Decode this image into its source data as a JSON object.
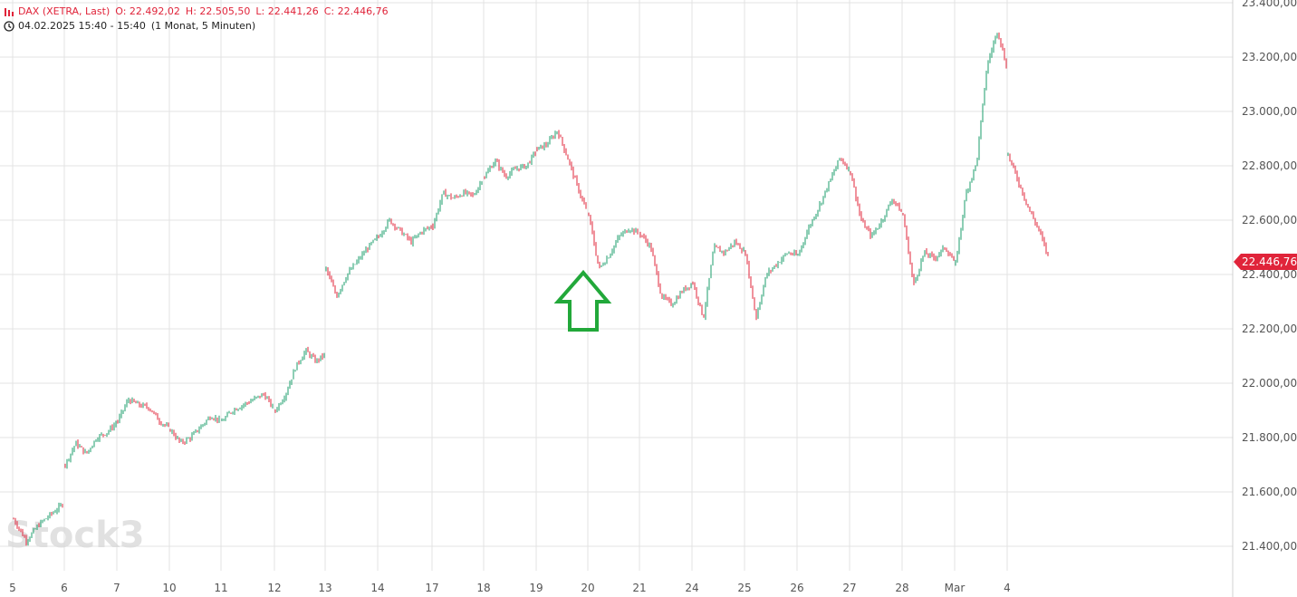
{
  "header": {
    "symbol": "DAX (XETRA, Last)",
    "open": "O: 22.492,02",
    "high": "H: 22.505,50",
    "low": "L: 22.441,26",
    "close": "C: 22.446,76",
    "datetime": "04.02.2025 15:40 - 15:40",
    "timeframe": "(1 Monat, 5 Minuten)"
  },
  "watermark": "Stock3",
  "price_label": "22.446,76",
  "colors": {
    "up": "#1b9e6b",
    "down": "#e0243a",
    "grid": "#e3e3e3",
    "arrow": "#22a83a",
    "axis_text": "#555555"
  },
  "chart_data": {
    "type": "line",
    "title": "DAX (XETRA, Last)",
    "xlabel": "",
    "ylabel": "",
    "ylim": [
      21300,
      23400
    ],
    "ytick_values": [
      21400,
      21600,
      21800,
      22000,
      22200,
      22400,
      22600,
      22800,
      23000,
      23200,
      23400
    ],
    "ytick_labels": [
      "21.400,00",
      "21.600,00",
      "21.800,00",
      "22.000,00",
      "22.200,00",
      "22.400,00",
      "22.600,00",
      "22.800,00",
      "23.000,00",
      "23.200,00",
      "23.400,00"
    ],
    "categories": [
      "5",
      "6",
      "7",
      "10",
      "11",
      "12",
      "13",
      "14",
      "17",
      "18",
      "19",
      "20",
      "21",
      "24",
      "25",
      "26",
      "27",
      "28",
      "Mar",
      "4"
    ],
    "series": [
      {
        "values": [
          [
            [
              21500,
              21420
            ],
            [
              21420,
              21480
            ],
            [
              21480,
              21520
            ],
            [
              21520,
              21560
            ]
          ],
          [
            [
              21700,
              21780
            ],
            [
              21780,
              21740
            ],
            [
              21740,
              21800
            ],
            [
              21800,
              21820
            ],
            [
              21820,
              21860
            ]
          ],
          [
            [
              21860,
              21940
            ],
            [
              21940,
              21920
            ],
            [
              21920,
              21910
            ],
            [
              21910,
              21860
            ],
            [
              21860,
              21830
            ]
          ],
          [
            [
              21830,
              21780
            ],
            [
              21780,
              21800
            ],
            [
              21800,
              21840
            ],
            [
              21840,
              21880
            ],
            [
              21880,
              21860
            ]
          ],
          [
            [
              21860,
              21900
            ],
            [
              21900,
              21920
            ],
            [
              21920,
              21940
            ],
            [
              21940,
              21960
            ],
            [
              21960,
              21900
            ]
          ],
          [
            [
              21900,
              21960
            ],
            [
              21960,
              22060
            ],
            [
              22060,
              22120
            ],
            [
              22120,
              22080
            ],
            [
              22080,
              22110
            ]
          ],
          [
            [
              22420,
              22320
            ],
            [
              22320,
              22400
            ],
            [
              22400,
              22450
            ],
            [
              22450,
              22500
            ],
            [
              22500,
              22540
            ]
          ],
          [
            [
              22540,
              22600
            ],
            [
              22600,
              22560
            ],
            [
              22560,
              22520
            ],
            [
              22520,
              22560
            ],
            [
              22560,
              22580
            ]
          ],
          [
            [
              22580,
              22700
            ],
            [
              22700,
              22680
            ],
            [
              22680,
              22700
            ],
            [
              22700,
              22690
            ],
            [
              22690,
              22760
            ]
          ],
          [
            [
              22760,
              22820
            ],
            [
              22820,
              22760
            ],
            [
              22760,
              22790
            ],
            [
              22790,
              22800
            ],
            [
              22800,
              22860
            ]
          ],
          [
            [
              22860,
              22880
            ],
            [
              22880,
              22930
            ],
            [
              22930,
              22830
            ],
            [
              22830,
              22720
            ],
            [
              22720,
              22620
            ]
          ],
          [
            [
              22620,
              22420
            ],
            [
              22420,
              22470
            ],
            [
              22470,
              22540
            ],
            [
              22540,
              22570
            ],
            [
              22570,
              22550
            ]
          ],
          [
            [
              22550,
              22500
            ],
            [
              22500,
              22320
            ],
            [
              22320,
              22290
            ],
            [
              22290,
              22340
            ],
            [
              22340,
              22370
            ]
          ],
          [
            [
              22370,
              22240
            ],
            [
              22240,
              22500
            ],
            [
              22500,
              22480
            ],
            [
              22480,
              22520
            ],
            [
              22520,
              22480
            ]
          ],
          [
            [
              22480,
              22240
            ],
            [
              22240,
              22400
            ],
            [
              22400,
              22440
            ],
            [
              22440,
              22480
            ],
            [
              22480,
              22470
            ]
          ],
          [
            [
              22470,
              22570
            ],
            [
              22570,
              22650
            ],
            [
              22650,
              22740
            ],
            [
              22740,
              22830
            ],
            [
              22830,
              22780
            ]
          ],
          [
            [
              22780,
              22600
            ],
            [
              22600,
              22540
            ],
            [
              22540,
              22600
            ],
            [
              22600,
              22680
            ],
            [
              22680,
              22620
            ]
          ],
          [
            [
              22620,
              22360
            ],
            [
              22360,
              22480
            ],
            [
              22480,
              22460
            ],
            [
              22460,
              22500
            ],
            [
              22500,
              22440
            ]
          ],
          [
            [
              22440,
              22700
            ],
            [
              22700,
              22810
            ],
            [
              22810,
              23170
            ],
            [
              23170,
              23300
            ],
            [
              23300,
              23140
            ]
          ],
          [
            [
              22840,
              22740
            ],
            [
              22740,
              22640
            ],
            [
              22640,
              22560
            ],
            [
              22560,
              22447
            ]
          ]
        ]
      }
    ]
  }
}
